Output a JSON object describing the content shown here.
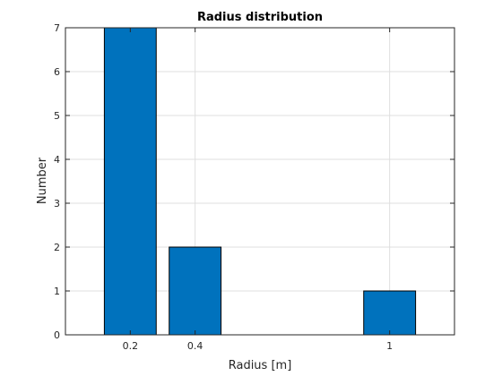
{
  "chart_data": {
    "type": "bar",
    "title": "Radius distribution",
    "xlabel": "Radius [m]",
    "ylabel": "Number",
    "x": [
      0.2,
      0.4,
      1
    ],
    "values": [
      7,
      2,
      1
    ],
    "bar_width": 0.16,
    "xlim": [
      0,
      1.2
    ],
    "ylim": [
      0,
      7
    ],
    "xticks": [
      0.2,
      0.4,
      1
    ],
    "xtick_labels": [
      "0.2",
      "0.4",
      "1"
    ],
    "yticks": [
      0,
      1,
      2,
      3,
      4,
      5,
      6,
      7
    ],
    "ytick_labels": [
      "0",
      "1",
      "2",
      "3",
      "4",
      "5",
      "6",
      "7"
    ],
    "grid": true,
    "bar_color": "#0072BD",
    "bar_edge_color": "#000000"
  }
}
